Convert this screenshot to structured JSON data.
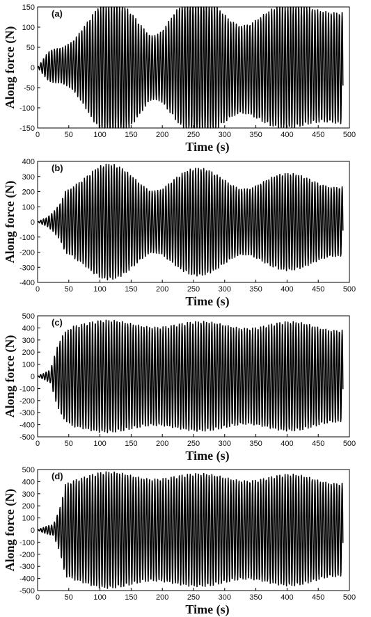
{
  "chart_data": [
    {
      "type": "line",
      "panel_label": "(a)",
      "xlabel": "Time (s)",
      "ylabel": "Along force (N)",
      "xlim": [
        0,
        500
      ],
      "ylim": [
        -150,
        150
      ],
      "xticks": [
        0,
        50,
        100,
        150,
        200,
        250,
        300,
        350,
        400,
        450,
        500
      ],
      "yticks": [
        -150,
        -100,
        -50,
        0,
        50,
        100,
        150
      ],
      "signal": {
        "duration": 490,
        "period": 4.35,
        "envelope": [
          [
            0,
            0
          ],
          [
            5,
            10
          ],
          [
            20,
            45
          ],
          [
            50,
            75
          ],
          [
            80,
            105
          ],
          [
            100,
            125
          ],
          [
            120,
            130
          ],
          [
            200,
            130
          ],
          [
            300,
            135
          ],
          [
            400,
            140
          ],
          [
            490,
            145
          ]
        ],
        "secondary_envelope": [
          [
            0,
            0
          ],
          [
            20,
            20
          ],
          [
            60,
            45
          ],
          [
            120,
            70
          ],
          [
            180,
            85
          ],
          [
            230,
            80
          ],
          [
            300,
            55
          ],
          [
            380,
            30
          ],
          [
            450,
            15
          ],
          [
            490,
            10
          ]
        ],
        "offset": 5
      }
    },
    {
      "type": "line",
      "panel_label": "(b)",
      "xlabel": "Time (s)",
      "ylabel": "Along force (N)",
      "xlim": [
        0,
        500
      ],
      "ylim": [
        -400,
        400
      ],
      "xticks": [
        0,
        50,
        100,
        150,
        200,
        250,
        300,
        350,
        400,
        450,
        500
      ],
      "yticks": [
        -400,
        -300,
        -200,
        -100,
        0,
        100,
        200,
        300,
        400
      ],
      "signal": {
        "duration": 490,
        "period": 4.35,
        "envelope": [
          [
            0,
            0
          ],
          [
            5,
            10
          ],
          [
            15,
            30
          ],
          [
            25,
            80
          ],
          [
            35,
            150
          ],
          [
            45,
            260
          ],
          [
            60,
            290
          ],
          [
            100,
            295
          ],
          [
            200,
            290
          ],
          [
            300,
            280
          ],
          [
            400,
            275
          ],
          [
            490,
            265
          ]
        ],
        "secondary_envelope": [
          [
            0,
            0
          ],
          [
            20,
            30
          ],
          [
            50,
            100
          ],
          [
            100,
            150
          ],
          [
            200,
            140
          ],
          [
            300,
            110
          ],
          [
            400,
            80
          ],
          [
            490,
            60
          ]
        ],
        "offset": 0
      }
    },
    {
      "type": "line",
      "panel_label": "(c)",
      "xlabel": "Time (s)",
      "ylabel": "Along force (N)",
      "xlim": [
        0,
        500
      ],
      "ylim": [
        -500,
        500
      ],
      "xticks": [
        0,
        50,
        100,
        150,
        200,
        250,
        300,
        350,
        400,
        450,
        500
      ],
      "yticks": [
        -500,
        -400,
        -300,
        -200,
        -100,
        0,
        100,
        200,
        300,
        400,
        500
      ],
      "signal": {
        "duration": 490,
        "period": 4.35,
        "envelope": [
          [
            0,
            0
          ],
          [
            10,
            20
          ],
          [
            20,
            60
          ],
          [
            30,
            250
          ],
          [
            40,
            380
          ],
          [
            55,
            440
          ],
          [
            100,
            440
          ],
          [
            200,
            430
          ],
          [
            300,
            430
          ],
          [
            400,
            420
          ],
          [
            490,
            415
          ]
        ],
        "secondary_envelope": [
          [
            0,
            0
          ],
          [
            20,
            60
          ],
          [
            60,
            50
          ],
          [
            150,
            40
          ],
          [
            250,
            40
          ],
          [
            350,
            50
          ],
          [
            450,
            60
          ],
          [
            490,
            60
          ]
        ],
        "offset": 0
      }
    },
    {
      "type": "line",
      "panel_label": "(d)",
      "xlabel": "Time (s)",
      "ylabel": "Along force (N)",
      "xlim": [
        0,
        500
      ],
      "ylim": [
        -500,
        500
      ],
      "xticks": [
        0,
        50,
        100,
        150,
        200,
        250,
        300,
        350,
        400,
        450,
        500
      ],
      "yticks": [
        -500,
        -400,
        -300,
        -200,
        -100,
        0,
        100,
        200,
        300,
        400,
        500
      ],
      "signal": {
        "duration": 490,
        "period": 4.35,
        "envelope": [
          [
            0,
            0
          ],
          [
            10,
            20
          ],
          [
            25,
            60
          ],
          [
            35,
            200
          ],
          [
            45,
            420
          ],
          [
            60,
            440
          ],
          [
            100,
            450
          ],
          [
            200,
            450
          ],
          [
            300,
            440
          ],
          [
            400,
            430
          ],
          [
            490,
            420
          ]
        ],
        "secondary_envelope": [
          [
            0,
            0
          ],
          [
            20,
            50
          ],
          [
            60,
            60
          ],
          [
            150,
            50
          ],
          [
            250,
            40
          ],
          [
            350,
            50
          ],
          [
            450,
            60
          ],
          [
            490,
            60
          ]
        ],
        "offset": 0
      }
    }
  ]
}
